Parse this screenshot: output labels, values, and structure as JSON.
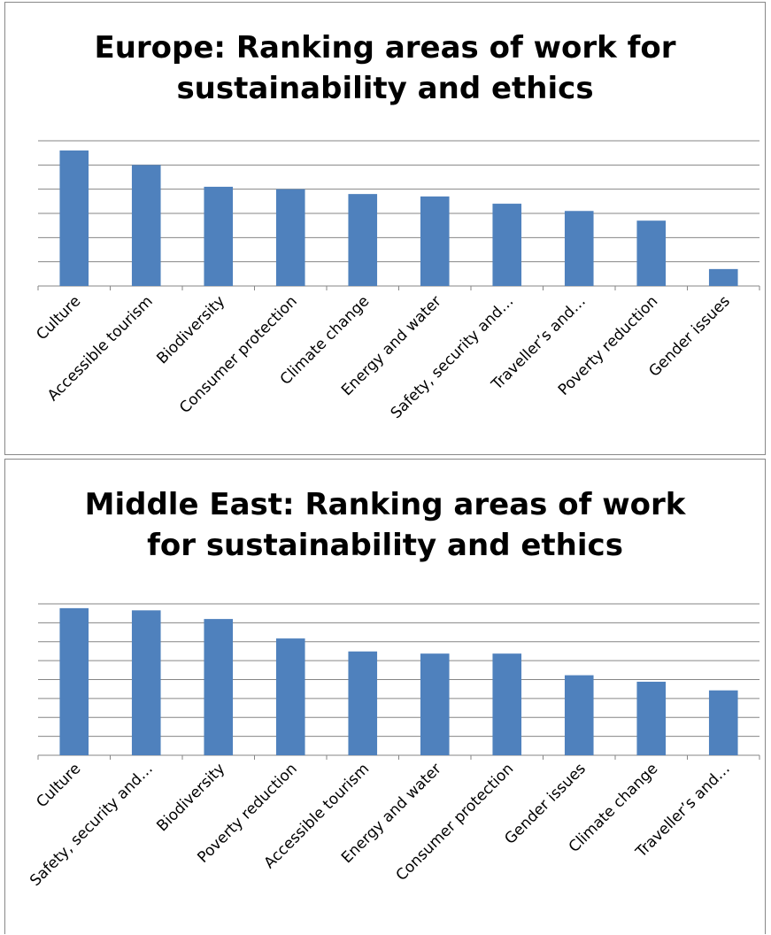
{
  "colors": {
    "bar": "#4f81bd",
    "grid": "#868686",
    "axis": "#868686"
  },
  "chart_data": [
    {
      "type": "bar",
      "title": "Europe: Ranking areas of work for sustainability and ethics",
      "title_lines": [
        "Europe: Ranking areas of work for",
        "sustainability and ethics"
      ],
      "categories": [
        "Culture",
        "Accessible tourism",
        "Biodiversity",
        "Consumer protection",
        "Climate change",
        "Energy and water",
        "Safety, security and…",
        "Traveller’s and…",
        "Poverty reduction",
        "Gender issues"
      ],
      "values": [
        5.6,
        5.0,
        4.1,
        4.0,
        3.8,
        3.7,
        3.4,
        3.1,
        2.7,
        0.7
      ],
      "ylim": [
        0,
        6
      ],
      "grid": true,
      "legend": false,
      "xlabel": "",
      "ylabel": ""
    },
    {
      "type": "bar",
      "title": "Middle East: Ranking areas of work for sustainability and ethics",
      "title_lines": [
        "Middle East: Ranking areas of work",
        "for sustainability and ethics"
      ],
      "categories": [
        "Culture",
        "Safety, security and…",
        "Biodiversity",
        "Poverty reduction",
        "Accessible tourism",
        "Energy and water",
        "Consumer protection",
        "Gender issues",
        "Climate change",
        "Traveller’s and…"
      ],
      "values": [
        6.8,
        6.7,
        6.3,
        5.4,
        4.8,
        4.7,
        4.7,
        3.7,
        3.4,
        3.0
      ],
      "ylim": [
        0,
        7
      ],
      "grid": true,
      "legend": false,
      "xlabel": "",
      "ylabel": ""
    }
  ]
}
